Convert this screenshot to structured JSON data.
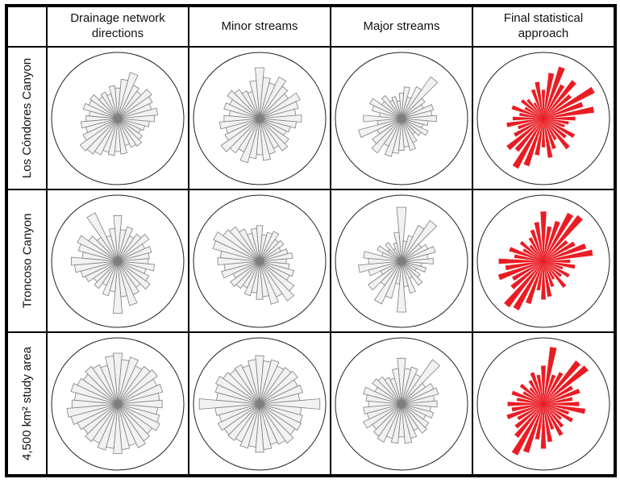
{
  "figure": {
    "columns": [
      "Drainage network directions",
      "Minor streams",
      "Major streams",
      "Final statistical approach"
    ],
    "rows": [
      "Los Cóndores Canyon",
      "Troncoso Canyon",
      "4,500 km² study area"
    ]
  },
  "colors": {
    "circle_stroke": "#222222",
    "petal_fill": "#f2f2f2",
    "petal_stroke": "#7f7f7f",
    "red": "#ea1c23"
  },
  "chart_data": [
    {
      "type": "rose",
      "site": "Los Cóndores Canyon",
      "dataset": "Drainage network directions",
      "color_style": "gray",
      "sector_width_deg": 10,
      "start_direction": "N",
      "clockwise": true,
      "values": [
        0.48,
        0.62,
        0.75,
        0.58,
        0.52,
        0.65,
        0.6,
        0.55,
        0.63,
        0.58,
        0.5,
        0.44,
        0.4,
        0.47,
        0.53,
        0.5,
        0.44,
        0.56,
        0.52,
        0.58,
        0.55,
        0.63,
        0.68,
        0.72,
        0.6,
        0.52,
        0.58,
        0.5,
        0.45,
        0.56,
        0.5,
        0.53,
        0.42,
        0.46,
        0.4,
        0.52
      ]
    },
    {
      "type": "rose",
      "site": "Los Cóndores Canyon",
      "dataset": "Minor streams",
      "color_style": "gray",
      "sector_width_deg": 10,
      "start_direction": "N",
      "clockwise": true,
      "values": [
        0.8,
        0.65,
        0.58,
        0.72,
        0.62,
        0.55,
        0.7,
        0.63,
        0.57,
        0.66,
        0.58,
        0.5,
        0.46,
        0.56,
        0.62,
        0.52,
        0.58,
        0.66,
        0.57,
        0.63,
        0.72,
        0.58,
        0.66,
        0.74,
        0.6,
        0.55,
        0.63,
        0.56,
        0.48,
        0.58,
        0.52,
        0.62,
        0.56,
        0.48,
        0.44,
        0.6
      ]
    },
    {
      "type": "rose",
      "site": "Los Cóndores Canyon",
      "dataset": "Major streams",
      "color_style": "gray",
      "sector_width_deg": 10,
      "start_direction": "N",
      "clockwise": true,
      "values": [
        0.4,
        0.5,
        0.35,
        0.55,
        0.8,
        0.45,
        0.38,
        0.52,
        0.48,
        0.55,
        0.42,
        0.35,
        0.46,
        0.38,
        0.3,
        0.42,
        0.52,
        0.45,
        0.5,
        0.55,
        0.62,
        0.48,
        0.66,
        0.56,
        0.42,
        0.7,
        0.38,
        0.6,
        0.35,
        0.48,
        0.55,
        0.38,
        0.44,
        0.32,
        0.36,
        0.28
      ]
    },
    {
      "type": "rose",
      "site": "Los Cóndores Canyon",
      "dataset": "Final statistical approach",
      "color_style": "red",
      "sector_width_deg": 10,
      "start_direction": "N",
      "clockwise": true,
      "values": [
        0.45,
        0.72,
        0.85,
        0.6,
        0.75,
        0.55,
        0.9,
        0.65,
        0.8,
        0.5,
        0.4,
        0.35,
        0.55,
        0.45,
        0.6,
        0.38,
        0.5,
        0.62,
        0.45,
        0.58,
        0.78,
        0.88,
        0.65,
        0.72,
        0.52,
        0.42,
        0.58,
        0.48,
        0.38,
        0.52,
        0.33,
        0.44,
        0.38,
        0.28,
        0.48,
        0.58
      ]
    },
    {
      "type": "rose",
      "site": "Troncoso Canyon",
      "dataset": "Drainage network directions",
      "color_style": "gray",
      "sector_width_deg": 10,
      "start_direction": "N",
      "clockwise": true,
      "values": [
        0.72,
        0.5,
        0.56,
        0.44,
        0.52,
        0.6,
        0.47,
        0.55,
        0.5,
        0.48,
        0.58,
        0.46,
        0.54,
        0.62,
        0.5,
        0.58,
        0.72,
        0.56,
        0.82,
        0.48,
        0.56,
        0.42,
        0.52,
        0.46,
        0.56,
        0.6,
        0.68,
        0.73,
        0.56,
        0.64,
        0.7,
        0.56,
        0.46,
        0.84,
        0.42,
        0.52
      ]
    },
    {
      "type": "rose",
      "site": "Troncoso Canyon",
      "dataset": "Minor streams",
      "color_style": "gray",
      "sector_width_deg": 10,
      "start_direction": "N",
      "clockwise": true,
      "values": [
        0.56,
        0.42,
        0.47,
        0.52,
        0.42,
        0.46,
        0.37,
        0.46,
        0.52,
        0.42,
        0.47,
        0.56,
        0.52,
        0.66,
        0.76,
        0.62,
        0.7,
        0.56,
        0.6,
        0.5,
        0.56,
        0.46,
        0.52,
        0.56,
        0.46,
        0.62,
        0.56,
        0.66,
        0.62,
        0.76,
        0.8,
        0.7,
        0.66,
        0.56,
        0.46,
        0.52
      ]
    },
    {
      "type": "rose",
      "site": "Troncoso Canyon",
      "dataset": "Major streams",
      "color_style": "gray",
      "sector_width_deg": 10,
      "start_direction": "N",
      "clockwise": true,
      "values": [
        0.85,
        0.32,
        0.42,
        0.62,
        0.78,
        0.38,
        0.46,
        0.55,
        0.42,
        0.5,
        0.32,
        0.4,
        0.26,
        0.36,
        0.46,
        0.3,
        0.52,
        0.4,
        0.8,
        0.36,
        0.6,
        0.74,
        0.46,
        0.64,
        0.36,
        0.54,
        0.68,
        0.52,
        0.6,
        0.32,
        0.42,
        0.26,
        0.36,
        0.22,
        0.3,
        0.46
      ]
    },
    {
      "type": "rose",
      "site": "Troncoso Canyon",
      "dataset": "Final statistical approach",
      "color_style": "red",
      "sector_width_deg": 10,
      "start_direction": "N",
      "clockwise": true,
      "values": [
        0.78,
        0.55,
        0.66,
        0.85,
        0.9,
        0.48,
        0.56,
        0.7,
        0.78,
        0.42,
        0.5,
        0.32,
        0.46,
        0.36,
        0.52,
        0.32,
        0.42,
        0.56,
        0.6,
        0.46,
        0.7,
        0.86,
        0.9,
        0.64,
        0.55,
        0.74,
        0.6,
        0.7,
        0.46,
        0.56,
        0.36,
        0.46,
        0.32,
        0.42,
        0.52,
        0.62
      ]
    },
    {
      "type": "rose",
      "site": "4,500 km² study area",
      "dataset": "Drainage network directions",
      "color_style": "gray",
      "sector_width_deg": 10,
      "start_direction": "N",
      "clockwise": true,
      "values": [
        0.8,
        0.7,
        0.76,
        0.66,
        0.72,
        0.76,
        0.68,
        0.73,
        0.66,
        0.7,
        0.63,
        0.68,
        0.73,
        0.66,
        0.71,
        0.76,
        0.68,
        0.72,
        0.78,
        0.7,
        0.75,
        0.68,
        0.72,
        0.66,
        0.7,
        0.76,
        0.8,
        0.72,
        0.68,
        0.76,
        0.7,
        0.66,
        0.72,
        0.68,
        0.63,
        0.76
      ]
    },
    {
      "type": "rose",
      "site": "4,500 km² study area",
      "dataset": "Minor streams",
      "color_style": "gray",
      "sector_width_deg": 10,
      "start_direction": "N",
      "clockwise": true,
      "values": [
        0.76,
        0.68,
        0.72,
        0.66,
        0.7,
        0.73,
        0.66,
        0.7,
        0.63,
        0.95,
        0.66,
        0.7,
        0.72,
        0.68,
        0.75,
        0.7,
        0.66,
        0.72,
        0.76,
        0.68,
        0.72,
        0.66,
        0.7,
        0.68,
        0.72,
        0.66,
        0.7,
        0.95,
        0.68,
        0.72,
        0.76,
        0.7,
        0.66,
        0.68,
        0.63,
        0.7
      ]
    },
    {
      "type": "rose",
      "site": "4,500 km² study area",
      "dataset": "Major streams",
      "color_style": "gray",
      "sector_width_deg": 10,
      "start_direction": "N",
      "clockwise": true,
      "values": [
        0.72,
        0.56,
        0.6,
        0.52,
        0.85,
        0.46,
        0.56,
        0.6,
        0.52,
        0.56,
        0.46,
        0.52,
        0.42,
        0.52,
        0.56,
        0.46,
        0.56,
        0.62,
        0.52,
        0.62,
        0.56,
        0.66,
        0.62,
        0.56,
        0.66,
        0.56,
        0.6,
        0.52,
        0.56,
        0.62,
        0.46,
        0.56,
        0.52,
        0.46,
        0.42,
        0.56
      ]
    },
    {
      "type": "rose",
      "site": "4,500 km² study area",
      "dataset": "Final statistical approach",
      "color_style": "red",
      "sector_width_deg": 10,
      "start_direction": "N",
      "clockwise": true,
      "values": [
        0.6,
        0.9,
        0.48,
        0.56,
        0.85,
        0.88,
        0.52,
        0.6,
        0.46,
        0.56,
        0.66,
        0.42,
        0.52,
        0.36,
        0.46,
        0.56,
        0.42,
        0.6,
        0.7,
        0.56,
        0.8,
        0.9,
        0.66,
        0.56,
        0.46,
        0.6,
        0.5,
        0.56,
        0.42,
        0.52,
        0.36,
        0.46,
        0.32,
        0.42,
        0.52,
        0.46
      ]
    }
  ]
}
